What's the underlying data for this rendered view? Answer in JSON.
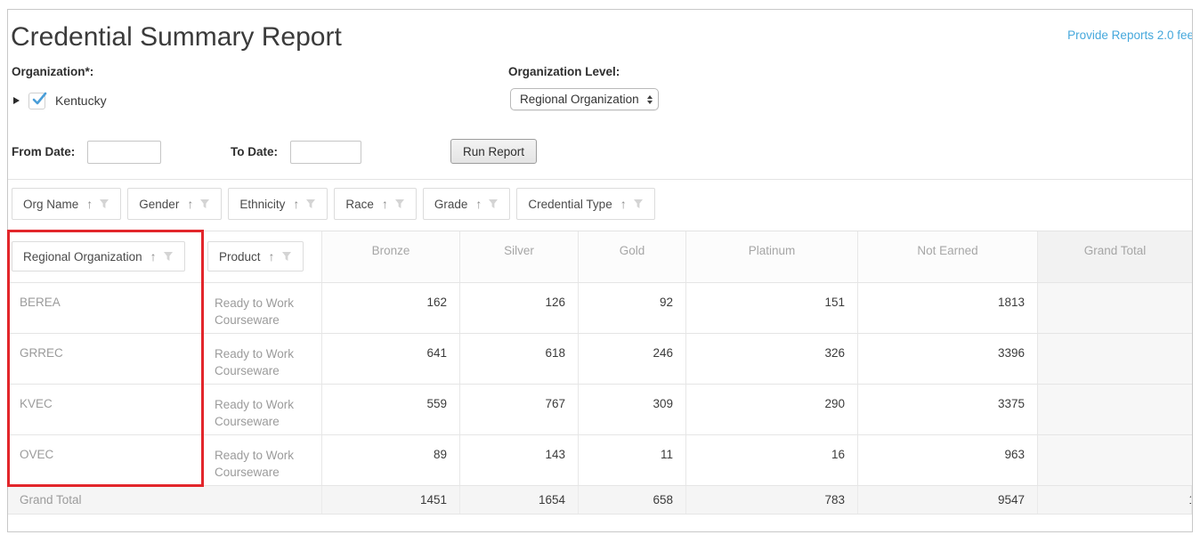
{
  "page": {
    "title": "Credential Summary Report",
    "feedback_link": "Provide Reports 2.0 fee"
  },
  "filters": {
    "organization": {
      "label": "Organization*:",
      "tree_item": "Kentucky",
      "checked": true
    },
    "organization_level": {
      "label": "Organization Level:",
      "selected": "Regional Organization"
    },
    "from_date": {
      "label": "From Date:",
      "value": ""
    },
    "to_date": {
      "label": "To Date:",
      "value": ""
    },
    "run_report_label": "Run Report"
  },
  "filter_chips": [
    {
      "label": "Org Name"
    },
    {
      "label": "Gender"
    },
    {
      "label": "Ethnicity"
    },
    {
      "label": "Race"
    },
    {
      "label": "Grade"
    },
    {
      "label": "Credential Type"
    }
  ],
  "table": {
    "row_group_columns": [
      {
        "label": "Regional Organization",
        "highlighted": true
      },
      {
        "label": "Product",
        "highlighted": false
      }
    ],
    "value_columns": [
      "Bronze",
      "Silver",
      "Gold",
      "Platinum",
      "Not Earned",
      "Grand Total"
    ],
    "rows": [
      {
        "org": "BEREA",
        "product": "Ready to Work Courseware",
        "values": [
          162,
          126,
          92,
          151,
          1813
        ],
        "grand_total": ""
      },
      {
        "org": "GRREC",
        "product": "Ready to Work Courseware",
        "values": [
          641,
          618,
          246,
          326,
          3396
        ],
        "grand_total": ""
      },
      {
        "org": "KVEC",
        "product": "Ready to Work Courseware",
        "values": [
          559,
          767,
          309,
          290,
          3375
        ],
        "grand_total": ""
      },
      {
        "org": "OVEC",
        "product": "Ready to Work Courseware",
        "values": [
          89,
          143,
          11,
          16,
          963
        ],
        "grand_total": ""
      }
    ],
    "grand_total_row": {
      "label": "Grand Total",
      "values": [
        1451,
        1654,
        658,
        783,
        9547
      ],
      "grand_total_clipped": "1"
    }
  },
  "icons": {
    "tree_expander": "▶",
    "sort_asc": "↑",
    "filter_funnel": "funnel",
    "select_stepper": "⇕",
    "checkbox_check": "✓"
  },
  "colors": {
    "link_blue": "#46a8dc",
    "highlight_red": "#e2262b",
    "checkbox_blue": "#4a9ed8",
    "grand_total_bg": "#f5f5f5"
  }
}
